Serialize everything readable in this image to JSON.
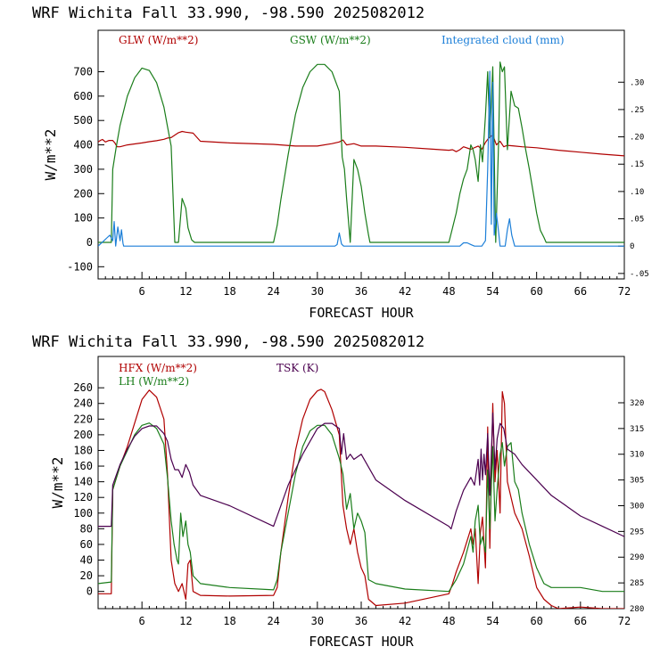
{
  "chart_data": [
    {
      "type": "line",
      "title": "WRF   Wichita Fall  33.990, -98.590  2025082012",
      "xlabel": "FORECAST HOUR",
      "ylabel": "W/m**2",
      "xlim": [
        0,
        72
      ],
      "ylim": [
        -150,
        870
      ],
      "y2lim": [
        -0.06,
        0.395
      ],
      "xticks": [
        "6",
        "12",
        "18",
        "24",
        "30",
        "36",
        "42",
        "48",
        "54",
        "60",
        "66",
        "72"
      ],
      "yticks": [
        "-100",
        "0",
        "100",
        "200",
        "300",
        "400",
        "500",
        "600",
        "700"
      ],
      "y2ticks": [
        "-.05",
        "0",
        ".05",
        ".10",
        ".15",
        ".20",
        ".25",
        ".30"
      ],
      "series": [
        {
          "name": "GLW (W/m**2)",
          "color": "#b00000",
          "axis": "left",
          "x": [
            0,
            0.3,
            0.6,
            1,
            1.5,
            2,
            2.3,
            2.6,
            3,
            4,
            5,
            6,
            7,
            8,
            9,
            9.5,
            10,
            11,
            11.5,
            12,
            13,
            14,
            18,
            24,
            27,
            30,
            32,
            33,
            33.5,
            34,
            35,
            36,
            38,
            42,
            46,
            48,
            48.5,
            49,
            49.5,
            50,
            51,
            52,
            52.5,
            53,
            53.5,
            54,
            54.5,
            55,
            55.5,
            56,
            57,
            58,
            60,
            63,
            66,
            69,
            72
          ],
          "y": [
            412,
            418,
            422,
            412,
            418,
            418,
            408,
            392,
            392,
            400,
            404,
            408,
            413,
            417,
            423,
            428,
            430,
            450,
            455,
            452,
            448,
            415,
            408,
            402,
            395,
            395,
            405,
            412,
            420,
            400,
            405,
            395,
            395,
            390,
            382,
            378,
            380,
            372,
            380,
            392,
            382,
            395,
            382,
            410,
            430,
            440,
            400,
            415,
            392,
            398,
            395,
            392,
            388,
            378,
            370,
            362,
            355
          ]
        },
        {
          "name": "GSW (W/m**2)",
          "color": "#1a7d1a",
          "axis": "left",
          "x": [
            0,
            1.8,
            2,
            2.5,
            3,
            4,
            5,
            6,
            7,
            8,
            9,
            9.5,
            10,
            10.5,
            11,
            11.5,
            12,
            12.3,
            12.8,
            13.2,
            13.6,
            24,
            24.5,
            25,
            26,
            27,
            28,
            29,
            30,
            31,
            32,
            33,
            33.4,
            33.7,
            34,
            34.5,
            35,
            35.5,
            36,
            36.5,
            37,
            37.2,
            48,
            48.5,
            49,
            49.5,
            50,
            50.5,
            51,
            51.3,
            51.6,
            52,
            52.3,
            52.6,
            53,
            53.3,
            53.6,
            54,
            54.4,
            54.8,
            55,
            55.3,
            55.6,
            56,
            56.5,
            57,
            57.5,
            58,
            58.5,
            59,
            59.5,
            60,
            60.5,
            61,
            61.3,
            72
          ],
          "y": [
            0,
            0,
            300,
            395,
            480,
            600,
            675,
            715,
            705,
            655,
            555,
            475,
            395,
            0,
            0,
            180,
            140,
            60,
            10,
            0,
            0,
            0,
            70,
            175,
            360,
            525,
            635,
            700,
            730,
            730,
            700,
            620,
            350,
            300,
            180,
            0,
            340,
            300,
            230,
            120,
            30,
            0,
            0,
            60,
            120,
            200,
            260,
            300,
            400,
            380,
            340,
            250,
            400,
            330,
            520,
            700,
            430,
            720,
            0,
            420,
            740,
            700,
            720,
            380,
            620,
            560,
            550,
            470,
            380,
            300,
            210,
            120,
            50,
            20,
            0,
            0
          ]
        },
        {
          "name": "Integrated cloud (mm)",
          "color": "#1c7fd8",
          "axis": "right",
          "x": [
            0,
            0.4,
            0.8,
            1.2,
            1.6,
            2,
            2.2,
            2.4,
            2.7,
            3,
            3.2,
            3.4,
            3.5,
            32.4,
            32.7,
            33,
            33.3,
            33.6,
            49.5,
            50,
            50.5,
            51,
            51.5,
            52.5,
            53,
            53.3,
            53.6,
            53.8,
            54,
            54.2,
            54.5,
            54.8,
            55,
            55.7,
            56,
            56.3,
            56.6,
            57,
            72
          ],
          "y": [
            0,
            0.005,
            0.01,
            0.015,
            0.02,
            0.01,
            0.045,
            0,
            0.035,
            0.01,
            0.03,
            0.005,
            0,
            0,
            0.003,
            0.024,
            0.004,
            0,
            0,
            0.006,
            0.006,
            0.003,
            0,
            0,
            0.01,
            0.14,
            0.32,
            0.04,
            0.3,
            0.02,
            0.06,
            0.025,
            0,
            0,
            0.03,
            0.05,
            0.02,
            0,
            0
          ]
        }
      ]
    },
    {
      "type": "line",
      "title": "WRF   Wichita Fall  33.990, -98.590  2025082012",
      "xlabel": "FORECAST HOUR",
      "ylabel": "W/m**2",
      "xlim": [
        0,
        72
      ],
      "ylim": [
        -22,
        300
      ],
      "y2lim": [
        280,
        329
      ],
      "xticks": [
        "6",
        "12",
        "18",
        "24",
        "30",
        "36",
        "42",
        "48",
        "54",
        "60",
        "66",
        "72"
      ],
      "yticks": [
        "0",
        "20",
        "40",
        "60",
        "80",
        "100",
        "120",
        "140",
        "160",
        "180",
        "200",
        "220",
        "240",
        "260"
      ],
      "y2ticks": [
        "280",
        "285",
        "290",
        "295",
        "300",
        "305",
        "310",
        "315",
        "320"
      ],
      "series": [
        {
          "name": "HFX (W/m**2)",
          "color": "#b00000",
          "axis": "left",
          "x": [
            0,
            1.8,
            2,
            3,
            4,
            5,
            6,
            7,
            8,
            9,
            9.5,
            10,
            10.5,
            11,
            11.5,
            12,
            12.3,
            12.6,
            13,
            14,
            18,
            24,
            24.5,
            25,
            26,
            27,
            28,
            29,
            30,
            30.5,
            31,
            32,
            33,
            33.5,
            34,
            34.5,
            35,
            35.5,
            36,
            36.5,
            37,
            38,
            42,
            48,
            48.5,
            49,
            50,
            51,
            51.3,
            51.6,
            52,
            52.3,
            52.6,
            53,
            53.3,
            53.6,
            54,
            54.3,
            54.6,
            55,
            55.3,
            55.6,
            56,
            56.5,
            57,
            58,
            59,
            60,
            61,
            62,
            63,
            66,
            69,
            72
          ],
          "y": [
            -3,
            -3,
            130,
            160,
            185,
            215,
            245,
            257,
            248,
            220,
            150,
            40,
            10,
            0,
            10,
            -10,
            35,
            40,
            0,
            -5,
            -6,
            -5,
            5,
            50,
            120,
            180,
            220,
            245,
            256,
            258,
            255,
            232,
            200,
            110,
            80,
            60,
            80,
            50,
            30,
            20,
            -10,
            -18,
            -15,
            -3,
            10,
            25,
            50,
            80,
            60,
            80,
            10,
            75,
            95,
            30,
            210,
            55,
            240,
            140,
            180,
            100,
            255,
            240,
            140,
            120,
            100,
            80,
            45,
            5,
            -10,
            -18,
            -22,
            -20,
            -22,
            -22
          ]
        },
        {
          "name": "LH  (W/m**2)",
          "color": "#1a7d1a",
          "axis": "left",
          "x": [
            0,
            1.8,
            2,
            3,
            4,
            5,
            6,
            7,
            8,
            9,
            9.5,
            10,
            10.4,
            10.8,
            11,
            11.3,
            11.6,
            12,
            12.3,
            12.6,
            13,
            14,
            18,
            24,
            24.5,
            25,
            26,
            27,
            28,
            29,
            30,
            31,
            32,
            33,
            33.5,
            34,
            34.5,
            35,
            35.5,
            36,
            36.5,
            37,
            38,
            42,
            48,
            49,
            50,
            51,
            51.3,
            51.6,
            52,
            52.3,
            52.6,
            53,
            53.3,
            53.6,
            54,
            54.3,
            54.6,
            55,
            55.3,
            55.6,
            56,
            56.5,
            57,
            57.5,
            58,
            59,
            60,
            61,
            62,
            66,
            69,
            72
          ],
          "y": [
            10,
            12,
            130,
            160,
            180,
            200,
            212,
            215,
            208,
            188,
            145,
            90,
            60,
            40,
            35,
            100,
            70,
            90,
            60,
            50,
            20,
            10,
            5,
            2,
            15,
            50,
            100,
            150,
            185,
            205,
            212,
            212,
            200,
            170,
            150,
            105,
            125,
            80,
            100,
            90,
            75,
            15,
            10,
            3,
            0,
            15,
            35,
            70,
            50,
            90,
            110,
            60,
            70,
            50,
            155,
            80,
            185,
            90,
            130,
            175,
            190,
            160,
            185,
            190,
            140,
            130,
            100,
            60,
            30,
            10,
            5,
            5,
            0,
            0
          ]
        },
        {
          "name": "TSK (K)",
          "color": "#4b004f",
          "axis": "right",
          "x": [
            0,
            1.8,
            2,
            3,
            4,
            5,
            6,
            7,
            8,
            9,
            9.5,
            10,
            10.5,
            11,
            11.5,
            12,
            12.5,
            13,
            14,
            18,
            24,
            26,
            28,
            30,
            31,
            32,
            33,
            33.3,
            33.6,
            34,
            34.5,
            35,
            36,
            38,
            42,
            48,
            48.3,
            48.6,
            49,
            50,
            51,
            51.5,
            52,
            52.2,
            52.4,
            52.6,
            52.8,
            53,
            53.3,
            53.6,
            54,
            54.3,
            54.6,
            55,
            55.5,
            56,
            57,
            58,
            60,
            62,
            66,
            69,
            72
          ],
          "y": [
            296,
            296,
            304,
            308,
            311,
            313.5,
            315,
            315.5,
            315.5,
            314,
            312.5,
            309,
            307,
            307,
            305.5,
            308,
            306.5,
            304,
            302,
            300,
            296,
            304,
            310,
            315,
            316,
            316,
            315,
            310,
            314,
            309,
            310,
            309,
            310,
            305,
            301,
            296,
            295.5,
            297,
            299,
            303,
            305.5,
            304,
            309,
            304,
            311,
            305,
            310,
            306,
            314,
            302,
            318,
            307,
            313,
            316,
            315,
            311,
            310,
            308,
            305,
            302,
            298,
            296,
            294
          ]
        }
      ]
    }
  ]
}
